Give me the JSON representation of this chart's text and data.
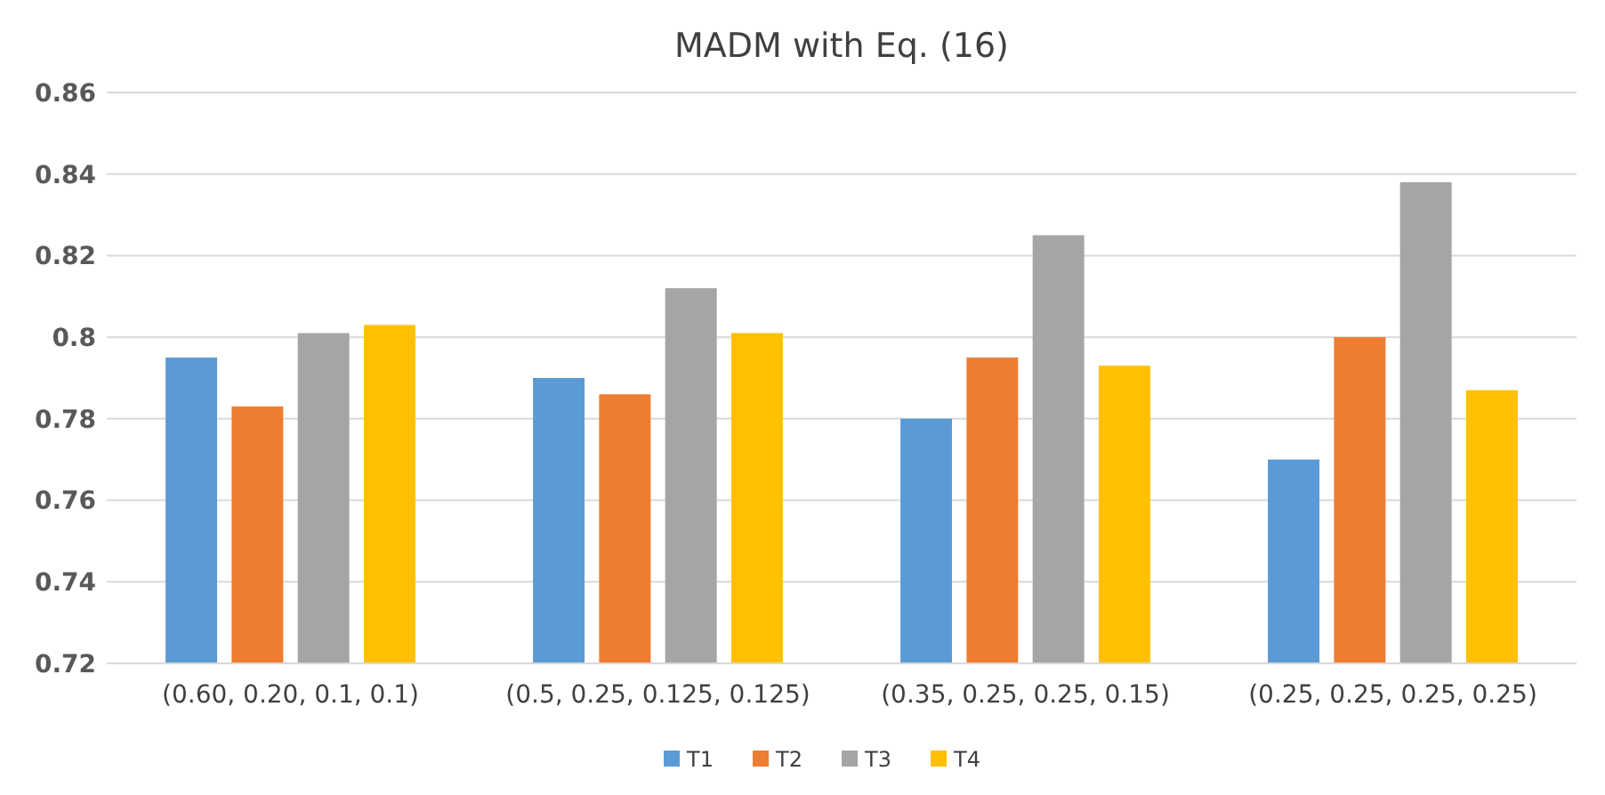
{
  "chart_data": {
    "type": "bar",
    "title": "MADM with Eq. (16)",
    "categories": [
      "(0.60, 0.20, 0.1, 0.1)",
      "(0.5, 0.25, 0.125, 0.125)",
      "(0.35, 0.25, 0.25, 0.15)",
      "(0.25, 0.25, 0.25, 0.25)"
    ],
    "series": [
      {
        "name": "T1",
        "color": "#5b9bd5",
        "values": [
          0.795,
          0.79,
          0.78,
          0.77
        ]
      },
      {
        "name": "T2",
        "color": "#ed7d31",
        "values": [
          0.783,
          0.786,
          0.795,
          0.8
        ]
      },
      {
        "name": "T3",
        "color": "#a5a5a5",
        "values": [
          0.801,
          0.812,
          0.825,
          0.838
        ]
      },
      {
        "name": "T4",
        "color": "#ffc000",
        "values": [
          0.803,
          0.801,
          0.793,
          0.787
        ]
      }
    ],
    "ylim": [
      0.72,
      0.86
    ],
    "yticks": [
      0.72,
      0.74,
      0.76,
      0.78,
      0.8,
      0.82,
      0.84,
      0.86
    ],
    "grid": "y",
    "legend": "bottom"
  }
}
